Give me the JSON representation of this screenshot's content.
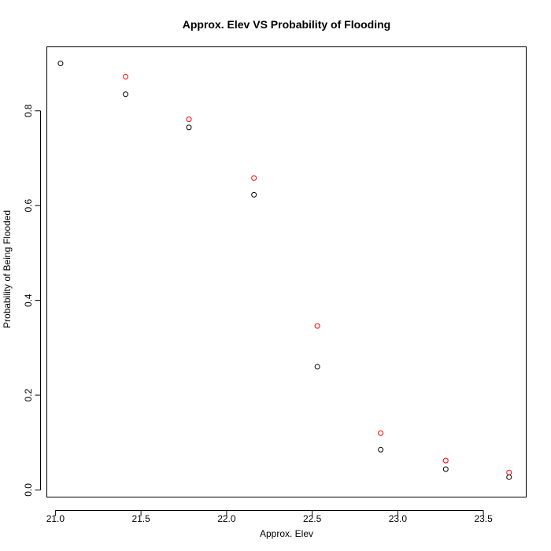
{
  "chart_data": {
    "type": "scatter",
    "title": "Approx. Elev VS Probability of Flooding",
    "xlabel": "Approx. Elev",
    "ylabel": "Probability of Being Flooded",
    "xlim": [
      20.95,
      23.75
    ],
    "ylim": [
      -0.015,
      0.935
    ],
    "xticks": [
      "21.0",
      "21.5",
      "22.0",
      "22.5",
      "23.0",
      "23.5"
    ],
    "yticks": [
      "0.0",
      "0.2",
      "0.4",
      "0.6",
      "0.8"
    ],
    "grid": false,
    "series": [
      {
        "color": "#000000",
        "points": [
          {
            "x": 21.03,
            "y": 0.9
          },
          {
            "x": 21.41,
            "y": 0.835
          },
          {
            "x": 21.78,
            "y": 0.765
          },
          {
            "x": 22.16,
            "y": 0.623
          },
          {
            "x": 22.53,
            "y": 0.26
          },
          {
            "x": 22.9,
            "y": 0.085
          },
          {
            "x": 23.28,
            "y": 0.044
          },
          {
            "x": 23.65,
            "y": 0.027
          }
        ]
      },
      {
        "color": "#ff0000",
        "points": [
          {
            "x": 21.41,
            "y": 0.872
          },
          {
            "x": 21.78,
            "y": 0.782
          },
          {
            "x": 22.16,
            "y": 0.658
          },
          {
            "x": 22.53,
            "y": 0.346
          },
          {
            "x": 22.9,
            "y": 0.12
          },
          {
            "x": 23.28,
            "y": 0.062
          },
          {
            "x": 23.65,
            "y": 0.037
          }
        ]
      }
    ]
  }
}
